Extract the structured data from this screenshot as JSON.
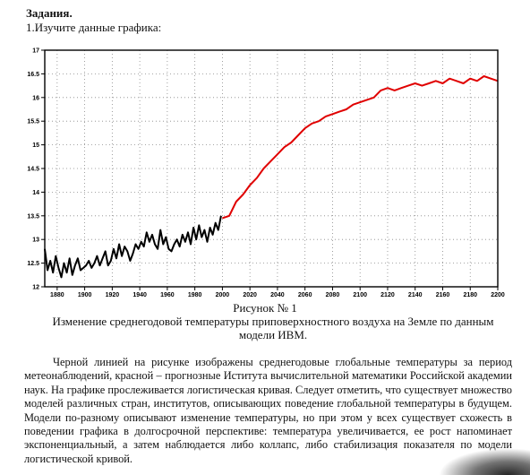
{
  "document": {
    "heading": "Задания.",
    "task": "1.Изучите данные графика:",
    "figure_number": "Рисунок № 1",
    "figure_caption": "Изменение среднегодовой температуры приповерхностного воздуха на Земле по данным модели ИВМ.",
    "paragraph": "Черной линией на рисунке изображены среднегодовые глобальные температуры за период метеонаблюдений, красной – прогнозные Иститута вычислительной математики Российской академии наук. На графике прослеживается логистическая кривая. Следует отметить, что существует множество моделей различных стран, институтов, описывающих поведение глобальной температуры в будущем. Модели по-разному описывают изменение температуры, но при этом у всех существует схожесть в поведении графика в долгосрочной перспективе: температура увеличивается, ее рост напоминает экспоненциальный, а затем наблюдается либо коллапс, либо стабилизация показателя по модели логистической кривой."
  },
  "chart_data": {
    "type": "line",
    "title": "",
    "xlabel": "",
    "ylabel": "",
    "xlim": [
      1871,
      2200
    ],
    "ylim": [
      12,
      17
    ],
    "x_ticks": [
      1880,
      1900,
      1920,
      1940,
      1960,
      1980,
      2000,
      2020,
      2040,
      2060,
      2080,
      2100,
      2120,
      2140,
      2160,
      2180,
      2200
    ],
    "y_ticks": [
      12,
      12.5,
      13,
      13.5,
      14,
      14.5,
      15,
      15.5,
      16,
      16.5,
      17
    ],
    "grid": true,
    "grid_style": "dotted",
    "series": [
      {
        "color": "#000000",
        "x": [
          1871,
          1873,
          1875,
          1877,
          1879,
          1881,
          1883,
          1885,
          1887,
          1889,
          1891,
          1893,
          1895,
          1897,
          1899,
          1901,
          1903,
          1905,
          1907,
          1909,
          1911,
          1913,
          1915,
          1917,
          1919,
          1921,
          1923,
          1925,
          1927,
          1929,
          1931,
          1933,
          1935,
          1937,
          1939,
          1941,
          1943,
          1945,
          1947,
          1949,
          1951,
          1953,
          1955,
          1957,
          1959,
          1961,
          1963,
          1965,
          1967,
          1969,
          1971,
          1973,
          1975,
          1977,
          1979,
          1981,
          1983,
          1985,
          1987,
          1989,
          1991,
          1993,
          1995,
          1997,
          1999
        ],
        "y": [
          12.8,
          12.35,
          12.55,
          12.3,
          12.65,
          12.4,
          12.2,
          12.5,
          12.3,
          12.6,
          12.25,
          12.45,
          12.6,
          12.35,
          12.4,
          12.45,
          12.55,
          12.4,
          12.5,
          12.65,
          12.45,
          12.6,
          12.75,
          12.45,
          12.55,
          12.8,
          12.6,
          12.9,
          12.65,
          12.85,
          12.75,
          12.55,
          12.7,
          12.9,
          12.8,
          12.95,
          12.85,
          13.15,
          12.95,
          13.1,
          12.9,
          12.8,
          13.2,
          12.9,
          13.05,
          12.8,
          12.75,
          12.9,
          13.0,
          12.85,
          13.1,
          12.95,
          13.15,
          12.9,
          13.25,
          13.0,
          13.3,
          13.05,
          13.2,
          12.95,
          13.25,
          13.1,
          13.35,
          13.2,
          13.5
        ]
      },
      {
        "color": "#e00000",
        "x": [
          2000,
          2005,
          2010,
          2015,
          2020,
          2025,
          2030,
          2035,
          2040,
          2045,
          2050,
          2055,
          2060,
          2065,
          2070,
          2075,
          2080,
          2085,
          2090,
          2095,
          2100,
          2105,
          2110,
          2115,
          2120,
          2125,
          2130,
          2135,
          2140,
          2145,
          2150,
          2155,
          2160,
          2165,
          2170,
          2175,
          2180,
          2185,
          2190,
          2195,
          2200
        ],
        "y": [
          13.45,
          13.5,
          13.8,
          13.95,
          14.15,
          14.3,
          14.5,
          14.65,
          14.8,
          14.95,
          15.05,
          15.2,
          15.35,
          15.45,
          15.5,
          15.6,
          15.65,
          15.7,
          15.75,
          15.85,
          15.9,
          15.95,
          16.0,
          16.15,
          16.2,
          16.15,
          16.2,
          16.25,
          16.3,
          16.25,
          16.3,
          16.35,
          16.3,
          16.4,
          16.35,
          16.3,
          16.4,
          16.35,
          16.45,
          16.4,
          16.35
        ]
      }
    ]
  }
}
